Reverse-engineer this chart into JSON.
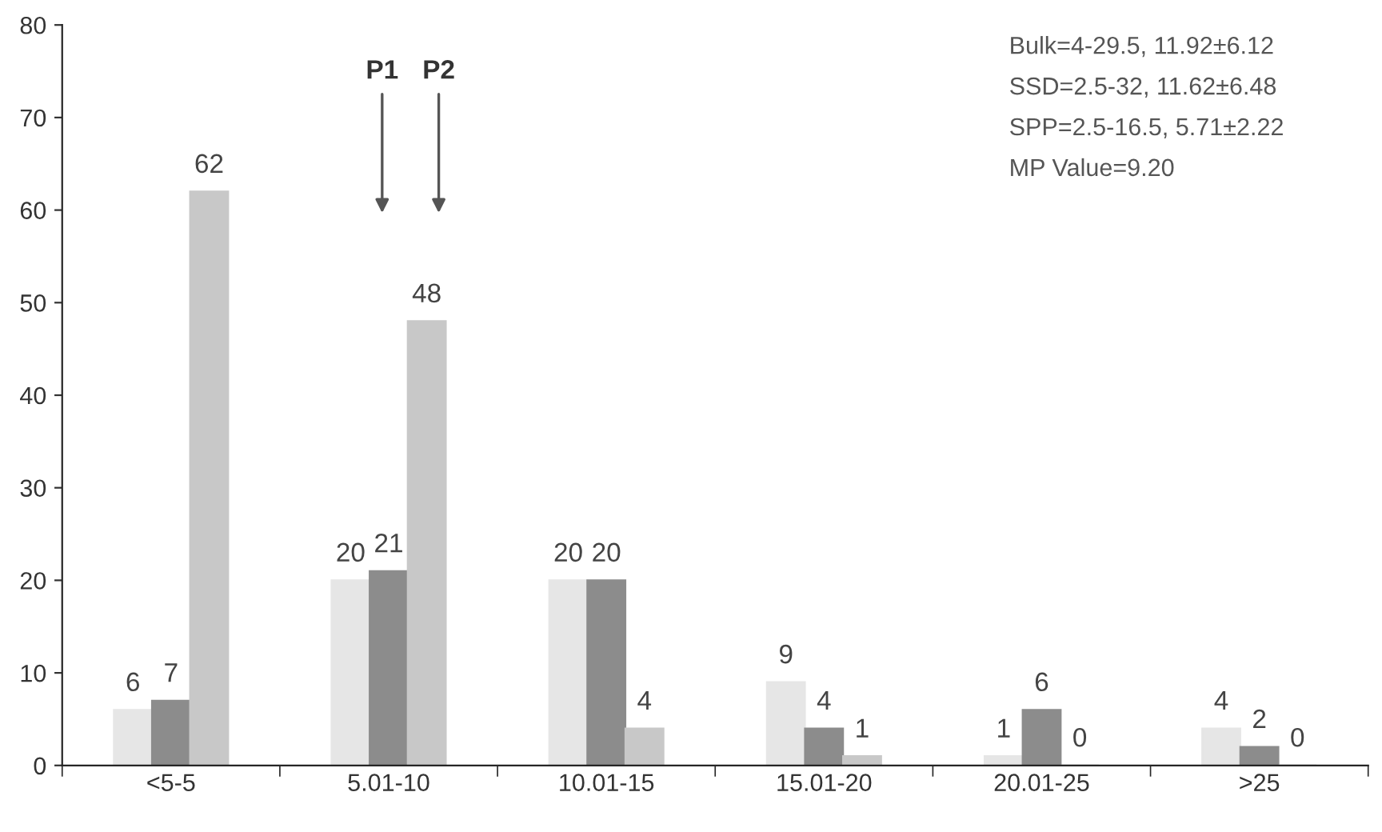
{
  "chart_data": {
    "type": "bar",
    "categories": [
      "<5-5",
      "5.01-10",
      "10.01-15",
      "15.01-20",
      "20.01-25",
      ">25"
    ],
    "series": [
      {
        "color": "#e6e6e6",
        "values": [
          6,
          20,
          20,
          9,
          1,
          4
        ]
      },
      {
        "color": "#8c8c8c",
        "values": [
          7,
          21,
          20,
          4,
          6,
          2
        ]
      },
      {
        "color": "#c8c8c8",
        "values": [
          62,
          48,
          4,
          1,
          0,
          0
        ]
      }
    ],
    "ylim": [
      0,
      80
    ],
    "yticks": [
      0,
      10,
      20,
      30,
      40,
      50,
      60,
      70,
      80
    ],
    "data_labels": true,
    "grid": false,
    "legend": false,
    "annotations": [
      "P1",
      "P2",
      "Bulk=4-29.5, 11.92±6.12",
      "SSD=2.5-32, 11.62±6.48",
      "SPP=2.5-16.5, 5.71±2.22",
      "MP Value=9.20"
    ]
  }
}
